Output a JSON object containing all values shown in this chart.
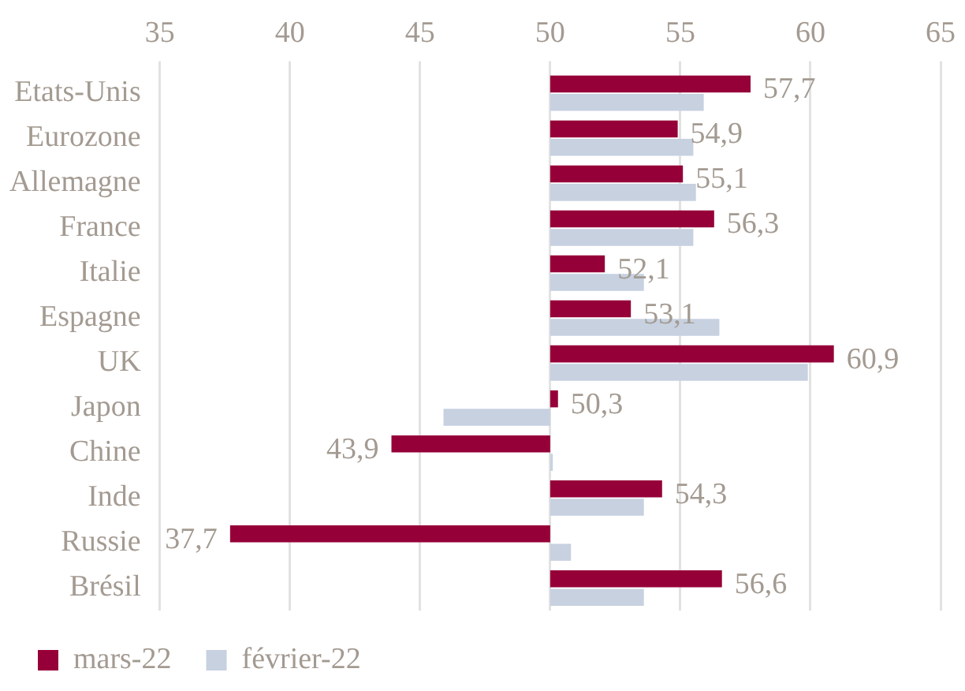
{
  "chart_data": {
    "type": "bar",
    "orientation": "horizontal",
    "categories": [
      "Etats-Unis",
      "Eurozone",
      "Allemagne",
      "France",
      "Italie",
      "Espagne",
      "UK",
      "Japon",
      "Chine",
      "Inde",
      "Russie",
      "Brésil"
    ],
    "series": [
      {
        "name": "mars-22",
        "color": "#960038",
        "base": [
          50,
          50,
          50,
          50,
          50,
          50,
          50,
          50,
          50,
          50,
          50,
          50
        ],
        "values": [
          7.7,
          4.9,
          5.1,
          6.3,
          2.1,
          3.1,
          10.9,
          0.3,
          -6.1,
          4.3,
          -12.3,
          6.6
        ],
        "value_labels": [
          "57,7",
          "54,9",
          "55,1",
          "56,3",
          "52,1",
          "53,1",
          "60,9",
          "50,3",
          "43,9",
          "54,3",
          "37,7",
          "56,6"
        ]
      },
      {
        "name": "février-22",
        "color": "#c7d1e0",
        "base": [
          50,
          50,
          50,
          50,
          50,
          50,
          50,
          50,
          50,
          50,
          50,
          50
        ],
        "values": [
          5.9,
          5.5,
          5.6,
          5.5,
          3.6,
          6.5,
          9.9,
          -4.1,
          0.1,
          3.6,
          0.8,
          3.6
        ]
      }
    ],
    "xlim": [
      35,
      65
    ],
    "xticks": [
      35,
      40,
      45,
      50,
      55,
      60,
      65
    ],
    "grid": "x",
    "legend": "bottom left"
  }
}
